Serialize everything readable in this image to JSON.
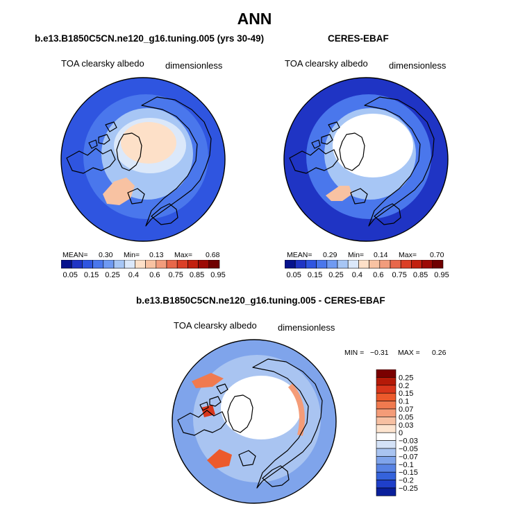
{
  "page": {
    "title": "ANN"
  },
  "panels": [
    {
      "title": "b.e13.B1850C5CN.ne120_g16.tuning.005 (yrs 30-49)",
      "variable": "TOA clearsky albedo",
      "units": "dimensionless",
      "stats": {
        "mean_label": "MEAN=",
        "mean": "0.30",
        "min_label": "Min=",
        "min": "0.13",
        "max_label": "Max=",
        "max": "0.68"
      }
    },
    {
      "title": "CERES-EBAF",
      "variable": "TOA clearsky albedo",
      "units": "dimensionless",
      "stats": {
        "mean_label": "MEAN=",
        "mean": "0.29",
        "min_label": "Min=",
        "min": "0.14",
        "max_label": "Max=",
        "max": "0.70"
      }
    },
    {
      "title": "b.e13.B1850C5CN.ne120_g16.tuning.005 - CERES-EBAF",
      "variable": "TOA clearsky albedo",
      "units": "dimensionless",
      "stats": {
        "min_label": "MIN =",
        "min": "−0.31",
        "max_label": "MAX =",
        "max": "0.26"
      }
    }
  ],
  "chart_data": [
    {
      "type": "heatmap",
      "projection": "north polar stereographic",
      "title": "b.e13.B1850C5CN.ne120_g16.tuning.005 (yrs 30-49)",
      "variable": "TOA clearsky albedo",
      "units": "dimensionless",
      "mean": 0.3,
      "min": 0.13,
      "max": 0.68,
      "colorbar_labels": [
        "0.05",
        "0.15",
        "0.25",
        "0.4",
        "0.6",
        "0.75",
        "0.85",
        "0.95"
      ],
      "colorbar_colors": [
        "#06128c",
        "#1f34c4",
        "#2f55e0",
        "#4a77ec",
        "#6f9af2",
        "#a7c6f5",
        "#dbe8fa",
        "#fde0c8",
        "#f8c2a2",
        "#f29c7c",
        "#e8674a",
        "#db3f27",
        "#c2200f",
        "#9c0a05",
        "#6f0000"
      ]
    },
    {
      "type": "heatmap",
      "projection": "north polar stereographic",
      "title": "CERES-EBAF",
      "variable": "TOA clearsky albedo",
      "units": "dimensionless",
      "mean": 0.29,
      "min": 0.14,
      "max": 0.7,
      "colorbar_labels": [
        "0.05",
        "0.15",
        "0.25",
        "0.4",
        "0.6",
        "0.75",
        "0.85",
        "0.95"
      ],
      "colorbar_colors": [
        "#06128c",
        "#1f34c4",
        "#2f55e0",
        "#4a77ec",
        "#6f9af2",
        "#a7c6f5",
        "#dbe8fa",
        "#fde0c8",
        "#f8c2a2",
        "#f29c7c",
        "#e8674a",
        "#db3f27",
        "#c2200f",
        "#9c0a05",
        "#6f0000"
      ]
    },
    {
      "type": "heatmap",
      "projection": "north polar stereographic",
      "title": "b.e13.B1850C5CN.ne120_g16.tuning.005 - CERES-EBAF",
      "variable": "TOA clearsky albedo",
      "units": "dimensionless",
      "min": -0.31,
      "max": 0.26,
      "colorbar_labels": [
        "0.25",
        "0.2",
        "0.15",
        "0.1",
        "0.07",
        "0.05",
        "0.03",
        "0",
        "−0.03",
        "−0.05",
        "−0.07",
        "−0.1",
        "−0.15",
        "−0.2",
        "−0.25"
      ],
      "colorbar_colors": [
        "#7a0000",
        "#b51a08",
        "#d9361b",
        "#ec5a2c",
        "#f07a4f",
        "#f49c78",
        "#f7c0a2",
        "#fde4cf",
        "#ffffff",
        "#d4e2f7",
        "#a9c4f1",
        "#7fa4eb",
        "#5883e4",
        "#3563db",
        "#1f3fc9",
        "#0a1f9a"
      ]
    }
  ]
}
